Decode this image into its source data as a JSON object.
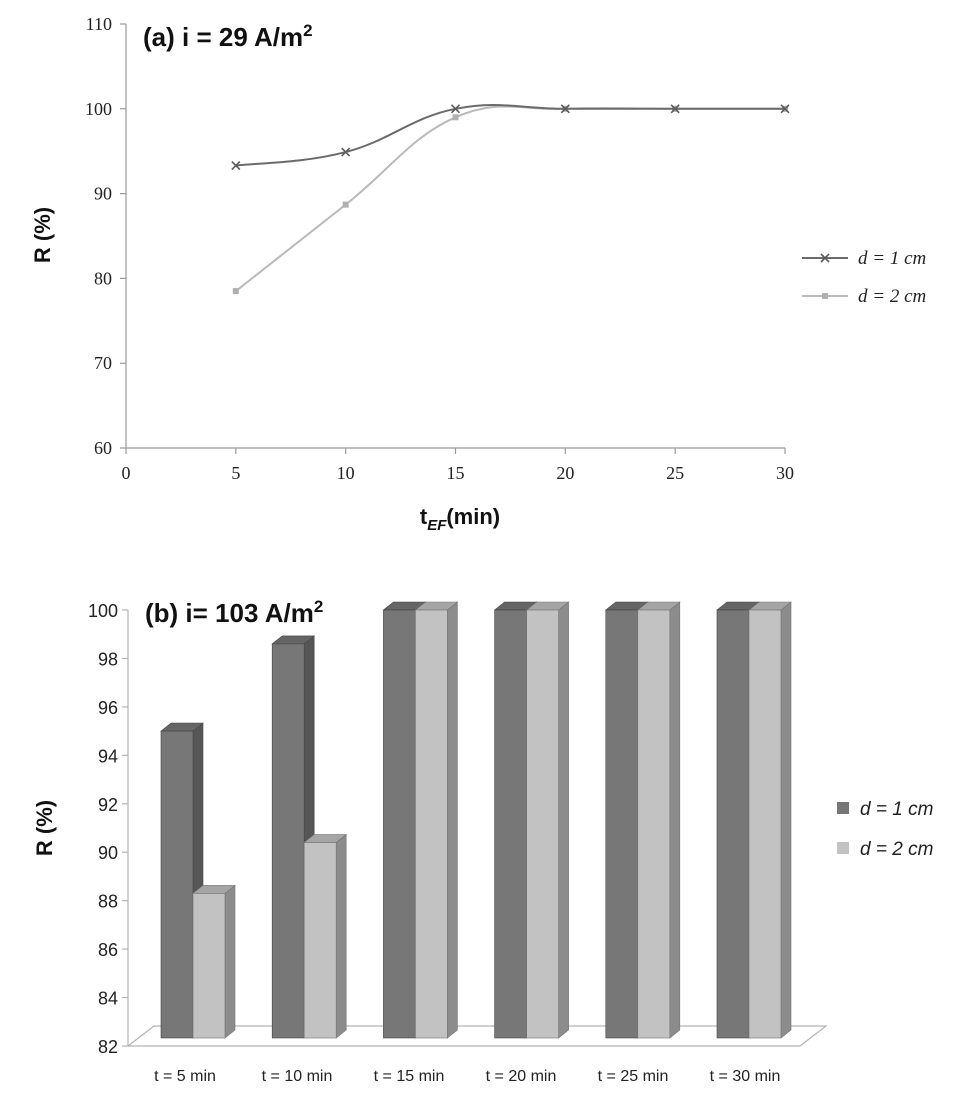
{
  "chart_data": [
    {
      "type": "line",
      "title_prefix": "(a) i = 29 A/m",
      "title_sup": "2",
      "xlabel_main": "t",
      "xlabel_sub": "EF",
      "xlabel_suffix": "(min)",
      "ylabel": "R (%)",
      "xlim": [
        0,
        30
      ],
      "ylim": [
        60,
        110
      ],
      "x_ticks": [
        "0",
        "5",
        "10",
        "15",
        "20",
        "25",
        "30"
      ],
      "y_ticks": [
        "60",
        "70",
        "80",
        "90",
        "100",
        "110"
      ],
      "x": [
        5,
        10,
        15,
        20,
        25,
        30
      ],
      "grid": false,
      "legend_position": "right",
      "series": [
        {
          "name": "d = 1 cm",
          "values": [
            93.3,
            94.9,
            100,
            100,
            100,
            100
          ],
          "color": "#6b6b6b",
          "marker": "x"
        },
        {
          "name": "d = 2 cm",
          "values": [
            78.5,
            88.7,
            99.0,
            100,
            100,
            100
          ],
          "color": "#b9b9b9",
          "marker": "square"
        }
      ]
    },
    {
      "type": "bar",
      "title_prefix": "(b) i= 103 A/m",
      "title_sup": "2",
      "ylabel": "R (%)",
      "ylim": [
        82,
        100
      ],
      "y_ticks": [
        "82",
        "84",
        "86",
        "88",
        "90",
        "92",
        "94",
        "96",
        "98",
        "100"
      ],
      "categories": [
        "t = 5 min",
        "t = 10 min",
        "t = 15 min",
        "t = 20 min",
        "t = 25 min",
        "t = 30 min"
      ],
      "grid": false,
      "legend_position": "right",
      "series": [
        {
          "name": "d = 1 cm",
          "values": [
            95.0,
            98.6,
            100,
            100,
            100,
            100
          ],
          "color": "#777777"
        },
        {
          "name": "d = 2 cm",
          "values": [
            88.3,
            90.4,
            100,
            100,
            100,
            100
          ],
          "color": "#c2c2c2"
        }
      ]
    }
  ]
}
